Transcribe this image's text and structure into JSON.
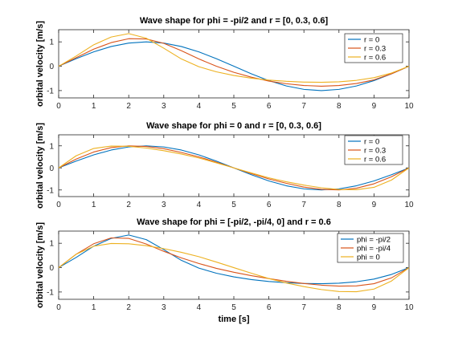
{
  "colors": {
    "blue": "#0072BD",
    "orange": "#D95319",
    "yellow": "#EDB120"
  },
  "chart_data": [
    {
      "type": "line",
      "title": "Wave shape for phi = -pi/2 and r = [0, 0.3, 0.6]",
      "xlabel": "",
      "ylabel": "orbital velocity [m/s]",
      "xlim": [
        0,
        10
      ],
      "ylim": [
        -1.3,
        1.5
      ],
      "xticks": [
        "0",
        "1",
        "2",
        "3",
        "4",
        "5",
        "6",
        "7",
        "8",
        "9",
        "10"
      ],
      "yticks": [
        "-1",
        "0",
        "1"
      ],
      "legend_position": "top-right",
      "grid": false,
      "x": [
        0,
        0.5,
        1,
        1.5,
        2,
        2.5,
        3,
        3.5,
        4,
        4.5,
        5,
        5.5,
        6,
        6.5,
        7,
        7.5,
        8,
        8.5,
        9,
        9.5,
        10
      ],
      "series": [
        {
          "name": "r = 0",
          "color": "#0072BD",
          "values": [
            0,
            0.31,
            0.59,
            0.81,
            0.95,
            1.0,
            0.95,
            0.81,
            0.59,
            0.31,
            0,
            -0.31,
            -0.59,
            -0.81,
            -0.95,
            -1.0,
            -0.95,
            -0.81,
            -0.59,
            -0.31,
            0
          ]
        },
        {
          "name": "r = 0.3",
          "color": "#D95319",
          "values": [
            0,
            0.35,
            0.7,
            0.97,
            1.13,
            1.12,
            0.94,
            0.64,
            0.3,
            0.0,
            -0.25,
            -0.45,
            -0.61,
            -0.72,
            -0.79,
            -0.82,
            -0.79,
            -0.71,
            -0.56,
            -0.31,
            0
          ]
        },
        {
          "name": "r = 0.6",
          "color": "#EDB120",
          "values": [
            0,
            0.42,
            0.88,
            1.2,
            1.34,
            1.15,
            0.74,
            0.3,
            -0.02,
            -0.23,
            -0.38,
            -0.49,
            -0.57,
            -0.62,
            -0.65,
            -0.66,
            -0.64,
            -0.58,
            -0.47,
            -0.28,
            0
          ]
        }
      ]
    },
    {
      "type": "line",
      "title": "Wave shape for phi = 0 and r = [0, 0.3, 0.6]",
      "xlabel": "",
      "ylabel": "orbital velocity [m/s]",
      "xlim": [
        0,
        10
      ],
      "ylim": [
        -1.3,
        1.5
      ],
      "xticks": [
        "0",
        "1",
        "2",
        "3",
        "4",
        "5",
        "6",
        "7",
        "8",
        "9",
        "10"
      ],
      "yticks": [
        "-1",
        "0",
        "1"
      ],
      "legend_position": "top-right",
      "grid": false,
      "x": [
        0,
        0.5,
        1,
        1.5,
        2,
        2.5,
        3,
        3.5,
        4,
        4.5,
        5,
        5.5,
        6,
        6.5,
        7,
        7.5,
        8,
        8.5,
        9,
        9.5,
        10
      ],
      "series": [
        {
          "name": "r = 0",
          "color": "#0072BD",
          "values": [
            0,
            0.31,
            0.59,
            0.81,
            0.95,
            1.0,
            0.95,
            0.81,
            0.59,
            0.31,
            0,
            -0.31,
            -0.59,
            -0.81,
            -0.95,
            -1.0,
            -0.95,
            -0.81,
            -0.59,
            -0.31,
            0
          ]
        },
        {
          "name": "r = 0.3",
          "color": "#D95319",
          "values": [
            0,
            0.4,
            0.72,
            0.92,
            1.0,
            0.97,
            0.87,
            0.7,
            0.5,
            0.26,
            0,
            -0.26,
            -0.5,
            -0.7,
            -0.87,
            -0.97,
            -1.0,
            -0.92,
            -0.72,
            -0.4,
            0
          ]
        },
        {
          "name": "r = 0.6",
          "color": "#EDB120",
          "values": [
            0,
            0.55,
            0.88,
            0.99,
            0.98,
            0.9,
            0.78,
            0.63,
            0.45,
            0.23,
            0,
            -0.23,
            -0.45,
            -0.63,
            -0.78,
            -0.9,
            -0.98,
            -0.99,
            -0.88,
            -0.55,
            0
          ]
        }
      ]
    },
    {
      "type": "line",
      "title": "Wave shape for phi = [-pi/2, -pi/4, 0] and r = 0.6",
      "xlabel": "time [s]",
      "ylabel": "orbital velocity [m/s]",
      "xlim": [
        0,
        10
      ],
      "ylim": [
        -1.3,
        1.5
      ],
      "xticks": [
        "0",
        "1",
        "2",
        "3",
        "4",
        "5",
        "6",
        "7",
        "8",
        "9",
        "10"
      ],
      "yticks": [
        "-1",
        "0",
        "1"
      ],
      "legend_position": "top-right",
      "grid": false,
      "x": [
        0,
        0.5,
        1,
        1.5,
        2,
        2.5,
        3,
        3.5,
        4,
        4.5,
        5,
        5.5,
        6,
        6.5,
        7,
        7.5,
        8,
        8.5,
        9,
        9.5,
        10
      ],
      "series": [
        {
          "name": "phi = -pi/2",
          "color": "#0072BD",
          "values": [
            0,
            0.42,
            0.88,
            1.2,
            1.34,
            1.15,
            0.74,
            0.3,
            -0.02,
            -0.23,
            -0.38,
            -0.49,
            -0.57,
            -0.62,
            -0.65,
            -0.66,
            -0.64,
            -0.58,
            -0.47,
            -0.28,
            0
          ]
        },
        {
          "name": "phi = -pi/4",
          "color": "#D95319",
          "values": [
            0,
            0.55,
            0.98,
            1.22,
            1.2,
            0.97,
            0.67,
            0.4,
            0.17,
            -0.03,
            -0.19,
            -0.33,
            -0.45,
            -0.56,
            -0.65,
            -0.72,
            -0.76,
            -0.75,
            -0.66,
            -0.42,
            0
          ]
        },
        {
          "name": "phi = 0",
          "color": "#EDB120",
          "values": [
            0,
            0.55,
            0.88,
            0.99,
            0.98,
            0.9,
            0.78,
            0.63,
            0.45,
            0.23,
            0,
            -0.23,
            -0.45,
            -0.63,
            -0.78,
            -0.9,
            -0.98,
            -0.99,
            -0.88,
            -0.55,
            0
          ]
        }
      ]
    }
  ]
}
